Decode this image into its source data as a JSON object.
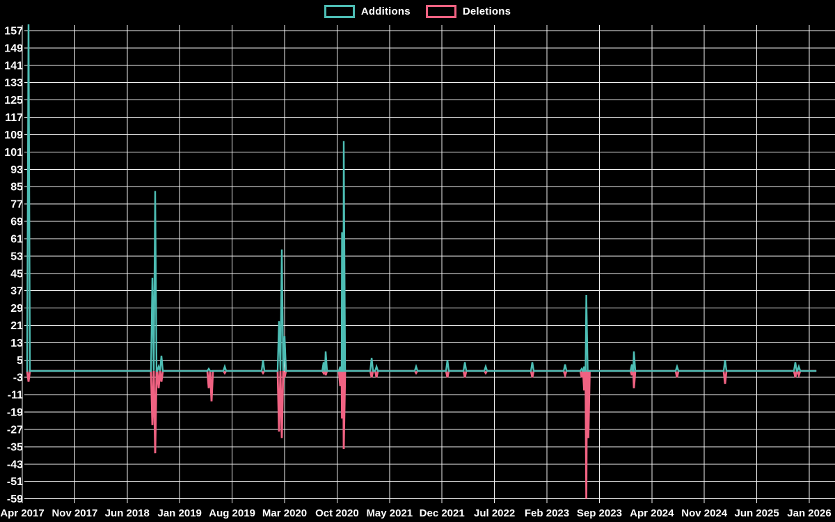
{
  "legend": {
    "additions_label": "Additions",
    "deletions_label": "Deletions"
  },
  "colors": {
    "additions": "#4dbdb4",
    "deletions": "#f06282",
    "grid": "#f2f2f2",
    "background": "#000000",
    "text": "#ffffff"
  },
  "chart_data": {
    "type": "line",
    "title": "",
    "xlabel": "",
    "ylabel": "",
    "legend_position": "top-center",
    "grid": true,
    "x_tick_labels": [
      "Apr 2017",
      "Nov 2017",
      "Jun 2018",
      "Jan 2019",
      "Aug 2019",
      "Mar 2020",
      "Oct 2020",
      "May 2021",
      "Dec 2021",
      "Jul 2022",
      "Feb 2023",
      "Sep 2023",
      "Apr 2024",
      "Nov 2024",
      "Jun 2025",
      "Jan 2026"
    ],
    "y_ticks": [
      157,
      149,
      141,
      133,
      125,
      117,
      109,
      101,
      93,
      85,
      77,
      69,
      61,
      53,
      45,
      37,
      29,
      21,
      13,
      5,
      -3,
      -11,
      -19,
      -27,
      -35,
      -43,
      -51,
      -59
    ],
    "ylim": [
      -61,
      160
    ],
    "baseline": 0,
    "series": [
      {
        "name": "Additions",
        "color": "#4dbdb4"
      },
      {
        "name": "Deletions",
        "color": "#f06282"
      }
    ],
    "note": "Weekly spikes; t is fraction of time axis from Apr 2017 (0) to Jan 2026 (1). First additions spike is clipped at the chart top (>157).",
    "end_t": 1.009,
    "spikes": [
      {
        "t": 0.008,
        "additions": 165,
        "deletions": -5,
        "clipped_top": true
      },
      {
        "t": 0.1653,
        "additions": 43,
        "deletions": -25
      },
      {
        "t": 0.1689,
        "additions": 83,
        "deletions": -38
      },
      {
        "t": 0.1733,
        "additions": 2,
        "deletions": -8
      },
      {
        "t": 0.1768,
        "additions": 7,
        "deletions": -5
      },
      {
        "t": 0.237,
        "additions": 1,
        "deletions": -8
      },
      {
        "t": 0.2405,
        "additions": 0,
        "deletions": -14
      },
      {
        "t": 0.2573,
        "additions": 2,
        "deletions": -1
      },
      {
        "t": 0.3059,
        "additions": 5,
        "deletions": -1
      },
      {
        "t": 0.3263,
        "additions": 23,
        "deletions": -28
      },
      {
        "t": 0.3298,
        "additions": 56,
        "deletions": -31
      },
      {
        "t": 0.3333,
        "additions": 16,
        "deletions": -3
      },
      {
        "t": 0.3829,
        "additions": 4,
        "deletions": -1
      },
      {
        "t": 0.3855,
        "additions": 9,
        "deletions": -2
      },
      {
        "t": 0.4041,
        "additions": 2,
        "deletions": -7
      },
      {
        "t": 0.4063,
        "additions": 64,
        "deletions": -22
      },
      {
        "t": 0.4085,
        "additions": 106,
        "deletions": -36
      },
      {
        "t": 0.4439,
        "additions": 6,
        "deletions": -3
      },
      {
        "t": 0.4501,
        "additions": 2,
        "deletions": -3
      },
      {
        "t": 0.5004,
        "additions": 2,
        "deletions": -1
      },
      {
        "t": 0.5402,
        "additions": 5,
        "deletions": -3
      },
      {
        "t": 0.5624,
        "additions": 4,
        "deletions": -3
      },
      {
        "t": 0.5889,
        "additions": 2,
        "deletions": -1
      },
      {
        "t": 0.6481,
        "additions": 4,
        "deletions": -3
      },
      {
        "t": 0.6897,
        "additions": 3,
        "deletions": -2
      },
      {
        "t": 0.7109,
        "additions": 1,
        "deletions": -3
      },
      {
        "t": 0.714,
        "additions": 2,
        "deletions": -9
      },
      {
        "t": 0.7167,
        "additions": 35,
        "deletions": -59
      },
      {
        "t": 0.7193,
        "additions": 0,
        "deletions": -31
      },
      {
        "t": 0.7746,
        "additions": 3,
        "deletions": -2
      },
      {
        "t": 0.7772,
        "additions": 9,
        "deletions": -8
      },
      {
        "t": 0.832,
        "additions": 2,
        "deletions": -3
      },
      {
        "t": 0.893,
        "additions": 5,
        "deletions": -6
      },
      {
        "t": 0.9823,
        "additions": 4,
        "deletions": -3
      },
      {
        "t": 0.9867,
        "additions": 2,
        "deletions": -2
      }
    ]
  }
}
